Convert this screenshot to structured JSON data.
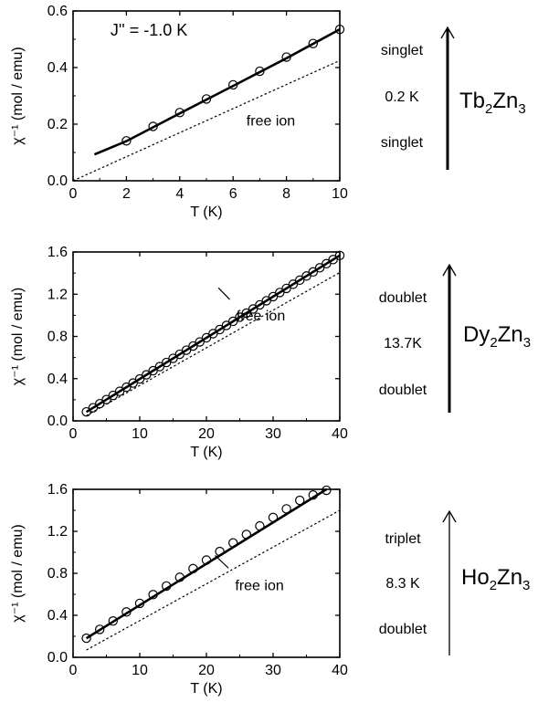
{
  "chart_data": [
    {
      "type": "line",
      "xlabel": "T (K)",
      "ylabel": "χ⁻¹ (mol / emu)",
      "xlim": [
        0,
        10
      ],
      "ylim": [
        0.0,
        0.6
      ],
      "xticks": [
        "0",
        "2",
        "4",
        "6",
        "8",
        "10"
      ],
      "yticks": [
        "0.0",
        "0.2",
        "0.4",
        "0.6"
      ],
      "annotation": "J'' = -1.0 K",
      "free_ion_label": "free ion",
      "free_ion_label_pos": [
        6.5,
        0.195
      ],
      "series": [
        {
          "name": "",
          "style": "markers",
          "x": [
            2,
            3,
            4,
            5,
            6,
            7,
            8,
            9,
            10
          ],
          "y": [
            0.141,
            0.192,
            0.241,
            0.289,
            0.339,
            0.387,
            0.437,
            0.485,
            0.535
          ]
        },
        {
          "name": "",
          "style": "solid",
          "x": [
            0.8,
            2,
            4,
            6,
            8,
            10
          ],
          "y": [
            0.093,
            0.14,
            0.238,
            0.335,
            0.433,
            0.535
          ]
        },
        {
          "name": "free ion",
          "style": "dashed",
          "x": [
            0,
            10
          ],
          "y": [
            0.0,
            0.425
          ]
        }
      ],
      "level_scheme": {
        "upper": "singlet",
        "gap": "0.2 K",
        "lower": "singlet",
        "arrow": "solid"
      },
      "compound": {
        "base": "Tb",
        "sub1": "2",
        "mid": "Zn",
        "sub2": "3"
      }
    },
    {
      "type": "line",
      "xlabel": "T (K)",
      "ylabel": "χ⁻¹ (mol / emu)",
      "xlim": [
        0,
        40
      ],
      "ylim": [
        0.0,
        1.6
      ],
      "xticks": [
        "0",
        "10",
        "20",
        "30",
        "40"
      ],
      "yticks": [
        "0.0",
        "0.4",
        "0.8",
        "1.2",
        "1.6"
      ],
      "free_ion_label": "free ion",
      "free_ion_label_pos": [
        24.5,
        0.95
      ],
      "pointer": {
        "from": [
          23.5,
          1.15
        ],
        "to": [
          21.8,
          1.26
        ]
      },
      "series": [
        {
          "name": "",
          "style": "markers",
          "x": [
            2,
            3,
            4,
            5,
            6,
            7,
            8,
            9,
            10,
            11,
            12,
            13,
            14,
            15,
            16,
            17,
            18,
            19,
            20,
            21,
            22,
            23,
            24,
            25,
            26,
            27,
            28,
            29,
            30,
            31,
            32,
            33,
            34,
            35,
            36,
            37,
            38,
            39,
            40
          ],
          "y": [
            0.085,
            0.124,
            0.163,
            0.202,
            0.241,
            0.28,
            0.319,
            0.358,
            0.397,
            0.436,
            0.475,
            0.514,
            0.553,
            0.592,
            0.631,
            0.67,
            0.709,
            0.748,
            0.787,
            0.826,
            0.865,
            0.904,
            0.943,
            0.982,
            1.021,
            1.06,
            1.099,
            1.138,
            1.177,
            1.216,
            1.255,
            1.294,
            1.333,
            1.372,
            1.411,
            1.45,
            1.489,
            1.528,
            1.567
          ]
        },
        {
          "name": "",
          "style": "solid",
          "x": [
            2,
            40
          ],
          "y": [
            0.085,
            1.567
          ]
        },
        {
          "name": "free ion",
          "style": "dashed",
          "x": [
            2,
            40
          ],
          "y": [
            0.05,
            1.405
          ]
        }
      ],
      "level_scheme": {
        "upper": "doublet",
        "gap": "13.7K",
        "lower": "doublet",
        "arrow": "solid"
      },
      "compound": {
        "base": "Dy",
        "sub1": "2",
        "mid": "Zn",
        "sub2": "3"
      }
    },
    {
      "type": "line",
      "xlabel": "T (K)",
      "ylabel": "χ⁻¹ (mol / emu)",
      "xlim": [
        0,
        40
      ],
      "ylim": [
        0.0,
        1.6
      ],
      "xticks": [
        "0",
        "10",
        "20",
        "30",
        "40"
      ],
      "yticks": [
        "0.0",
        "0.4",
        "0.8",
        "1.2",
        "1.6"
      ],
      "free_ion_label": "free ion",
      "free_ion_label_pos": [
        24.3,
        0.64
      ],
      "pointer": {
        "from": [
          23.3,
          0.85
        ],
        "to": [
          21.3,
          0.97
        ]
      },
      "series": [
        {
          "name": "",
          "style": "markers",
          "x": [
            2,
            4,
            6,
            8,
            10,
            12,
            14,
            16,
            18,
            20,
            22,
            24,
            26,
            28,
            30,
            32,
            34,
            36,
            38
          ],
          "y": [
            0.182,
            0.266,
            0.346,
            0.432,
            0.514,
            0.597,
            0.679,
            0.762,
            0.845,
            0.926,
            1.008,
            1.09,
            1.17,
            1.251,
            1.332,
            1.414,
            1.495,
            1.546,
            1.591
          ]
        },
        {
          "name": "",
          "style": "solid",
          "x": [
            2,
            38
          ],
          "y": [
            0.182,
            1.6
          ]
        },
        {
          "name": "free ion",
          "style": "dashed",
          "x": [
            2,
            40
          ],
          "y": [
            0.07,
            1.4
          ]
        }
      ],
      "level_scheme": {
        "upper": "triplet",
        "gap": "8.3 K",
        "lower": "doublet",
        "arrow": "thin"
      },
      "compound": {
        "base": "Ho",
        "sub1": "2",
        "mid": "Zn",
        "sub2": "3"
      }
    }
  ]
}
